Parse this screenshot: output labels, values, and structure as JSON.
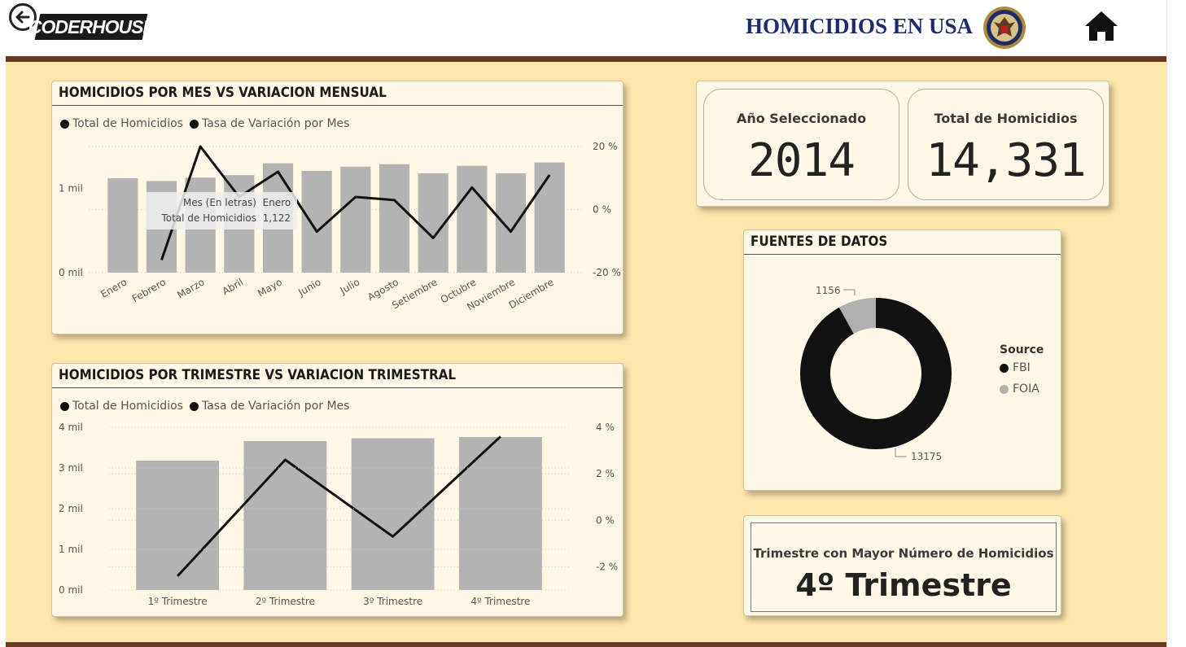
{
  "header": {
    "logo_text": "CODERHOUSE",
    "title": "HOMICIDIOS EN USA",
    "back_icon": "back-arrow-icon",
    "home_icon": "home-icon",
    "seal_icon": "doj-seal-icon"
  },
  "colors": {
    "canvas": "#ffe6ad",
    "card": "#fff8e6",
    "bar": "#b3b3b3",
    "line": "#111111",
    "rule": "#6b3a22",
    "title": "#1c2b6e"
  },
  "monthly_chart": {
    "title": "HOMICIDIOS POR MES VS VARIACION MENSUAL",
    "legend": [
      "Total de Homicidios",
      "Tasa de Variación por Mes"
    ],
    "y_ticks_left": [
      "1 mil",
      "0 mil"
    ],
    "y_ticks_right": [
      "20 %",
      "0 %",
      "-20 %"
    ],
    "tooltip": {
      "row1_label": "Mes (En letras)",
      "row1_value": "Enero",
      "row2_label": "Total de Homicidios",
      "row2_value": "1,122"
    }
  },
  "quarterly_chart": {
    "title": "HOMICIDIOS POR TRIMESTRE VS VARIACION TRIMESTRAL",
    "legend": [
      "Total de Homicidios",
      "Tasa de Variación por Mes"
    ],
    "y_ticks_left": [
      "4 mil",
      "3 mil",
      "2 mil",
      "1 mil",
      "0 mil"
    ],
    "y_ticks_right": [
      "4 %",
      "2 %",
      "0 %",
      "-2 %"
    ]
  },
  "kpis": {
    "year_label": "Año Seleccionado",
    "year_value": "2014",
    "total_label": "Total de Homicidios",
    "total_value": "14,331"
  },
  "sources": {
    "title": "FUENTES DE DATOS",
    "legend_title": "Source",
    "items": [
      {
        "label": "FBI",
        "color": "#111111"
      },
      {
        "label": "FOIA",
        "color": "#b0b0b0"
      }
    ],
    "labels": [
      "1156",
      "13175"
    ]
  },
  "top_quarter": {
    "label": "Trimestre con Mayor Número de Homicidios",
    "value": "4º Trimestre"
  },
  "chart_data": [
    {
      "type": "bar",
      "title": "HOMICIDIOS POR MES VS VARIACION MENSUAL",
      "categories": [
        "Enero",
        "Febrero",
        "Marzo",
        "Abril",
        "Mayo",
        "Junio",
        "Julio",
        "Agosto",
        "Setiembre",
        "Octubre",
        "Noviembre",
        "Diciembre"
      ],
      "series": [
        {
          "name": "Total de Homicidios",
          "type": "bar",
          "axis": "left",
          "values": [
            1122,
            1090,
            1130,
            1160,
            1300,
            1210,
            1260,
            1290,
            1180,
            1270,
            1180,
            1310
          ]
        },
        {
          "name": "Tasa de Variación por Mes",
          "type": "line",
          "axis": "right",
          "values": [
            null,
            -16,
            20,
            4,
            12,
            -7,
            4,
            3,
            -9,
            7,
            -7,
            11
          ]
        }
      ],
      "ylim_left": [
        0,
        1500
      ],
      "ylim_right": [
        -20,
        20
      ],
      "grid": true,
      "legend_position": "top-left"
    },
    {
      "type": "bar",
      "title": "HOMICIDIOS POR TRIMESTRE VS VARIACION TRIMESTRAL",
      "categories": [
        "1º Trimestre",
        "2º Trimestre",
        "3º Trimestre",
        "4º Trimestre"
      ],
      "series": [
        {
          "name": "Total de Homicidios",
          "type": "bar",
          "axis": "left",
          "values": [
            3180,
            3660,
            3730,
            3760
          ]
        },
        {
          "name": "Tasa de Variación por Mes",
          "type": "line",
          "axis": "right",
          "values": [
            -2.4,
            2.6,
            -0.7,
            3.6
          ]
        }
      ],
      "ylim_left": [
        0,
        4000
      ],
      "ylim_right": [
        -3,
        4
      ],
      "grid": true,
      "legend_position": "top-left"
    },
    {
      "type": "pie",
      "title": "FUENTES DE DATOS",
      "categories": [
        "FBI",
        "FOIA"
      ],
      "values": [
        13175,
        1156
      ],
      "donut": true,
      "legend_position": "right"
    }
  ]
}
